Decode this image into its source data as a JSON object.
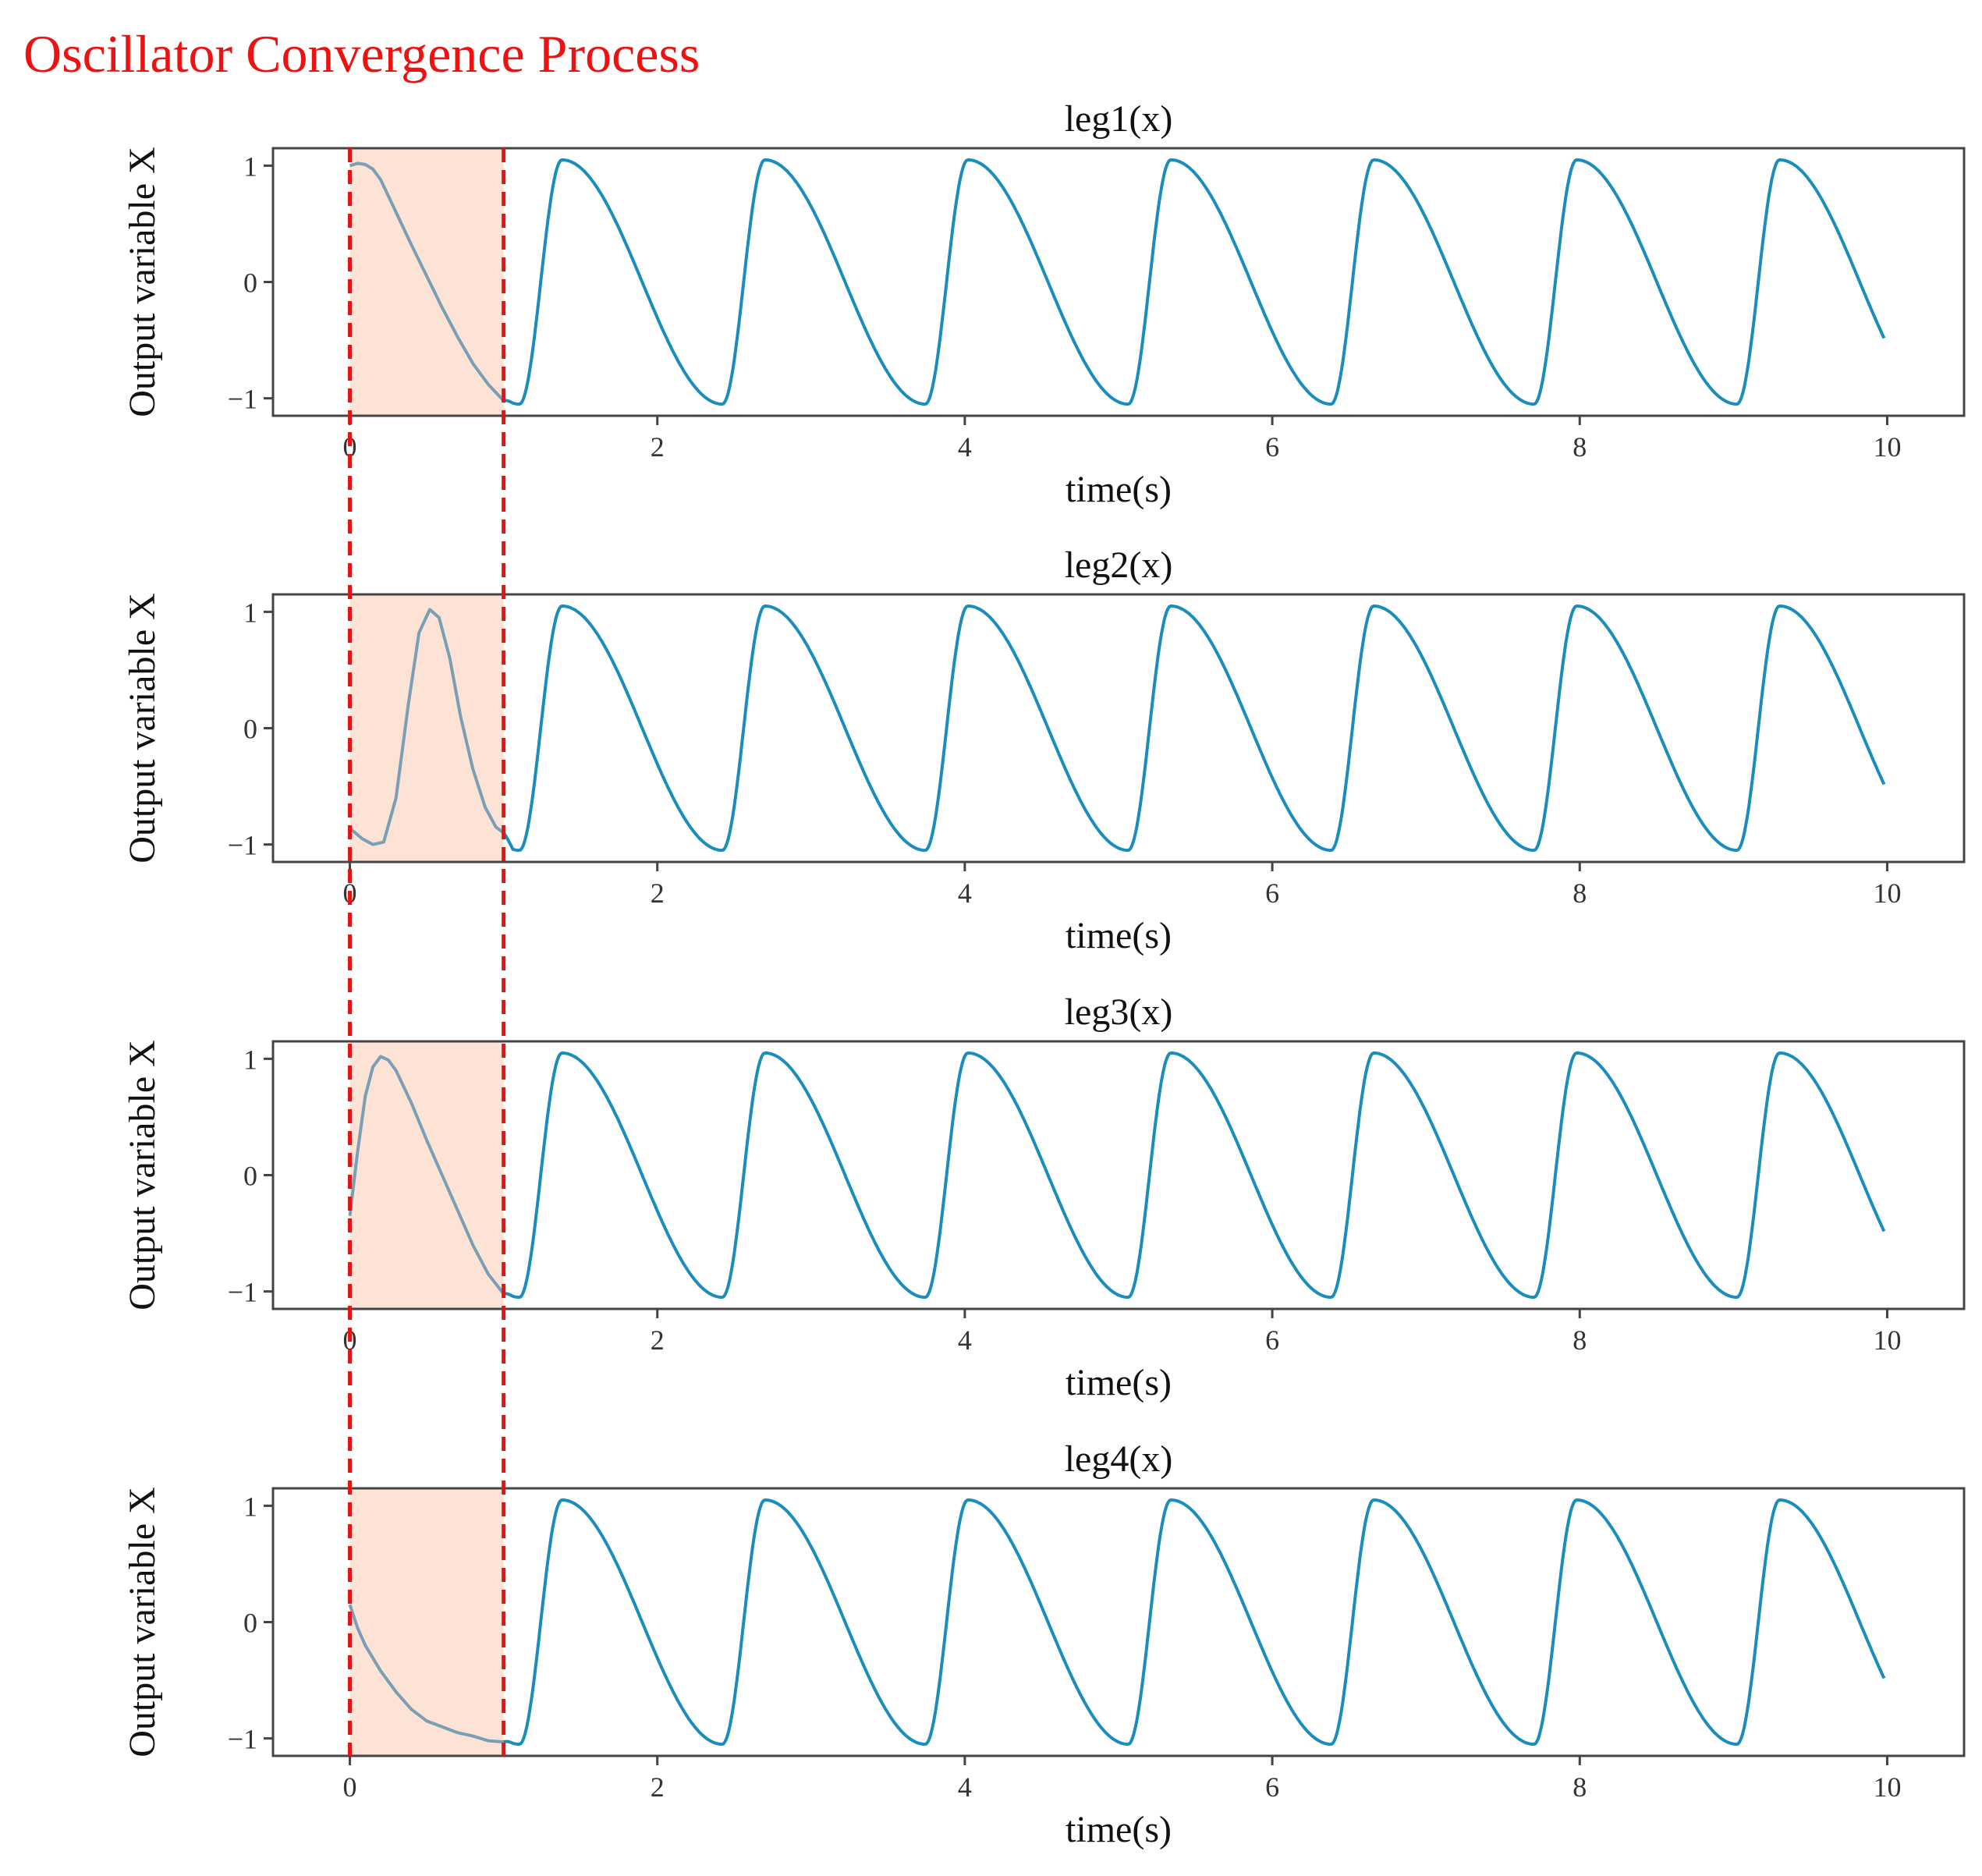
{
  "figure": {
    "title": "Oscillator Convergence Process",
    "title_color": "#ee1111",
    "line_color": "#1a8dbd",
    "transient_line_color": "#7a9fb4",
    "highlight_fill": "#fde3d6",
    "marker_line_color": "#e01515",
    "frame_color": "#444444"
  },
  "chart_data": [
    {
      "type": "line",
      "title": "leg1(x)",
      "xlabel": "time(s)",
      "ylabel": "Output variable X",
      "xlim": [
        -0.5,
        10.5
      ],
      "ylim": [
        -1.15,
        1.15
      ],
      "xticks": [
        0,
        2,
        4,
        6,
        8,
        10
      ],
      "xtick_labels": [
        "0",
        "2",
        "4",
        "6",
        "8",
        "10"
      ],
      "yticks": [
        -1,
        0,
        1
      ],
      "ytick_labels": [
        "−1",
        "0",
        "1"
      ],
      "highlight_region": [
        0,
        1.0
      ],
      "period": 1.32,
      "phase_peak": 1.38,
      "peak": 1.05,
      "trough": -1.05,
      "x_end": 9.98,
      "end_value": -0.5,
      "transient": [
        [
          0,
          1.0
        ],
        [
          0.05,
          1.02
        ],
        [
          0.1,
          1.01
        ],
        [
          0.15,
          0.97
        ],
        [
          0.2,
          0.88
        ],
        [
          0.3,
          0.6
        ],
        [
          0.4,
          0.32
        ],
        [
          0.5,
          0.05
        ],
        [
          0.6,
          -0.22
        ],
        [
          0.7,
          -0.47
        ],
        [
          0.8,
          -0.7
        ],
        [
          0.9,
          -0.88
        ],
        [
          1.0,
          -1.02
        ]
      ]
    },
    {
      "type": "line",
      "title": "leg2(x)",
      "xlabel": "time(s)",
      "ylabel": "Output variable X",
      "xlim": [
        -0.5,
        10.5
      ],
      "ylim": [
        -1.15,
        1.15
      ],
      "xticks": [
        0,
        2,
        4,
        6,
        8,
        10
      ],
      "xtick_labels": [
        "0",
        "2",
        "4",
        "6",
        "8",
        "10"
      ],
      "yticks": [
        -1,
        0,
        1
      ],
      "ytick_labels": [
        "−1",
        "0",
        "1"
      ],
      "highlight_region": [
        0,
        1.0
      ],
      "period": 1.32,
      "phase_peak": 1.38,
      "peak": 1.05,
      "trough": -1.05,
      "x_end": 9.98,
      "end_value": -0.5,
      "transient": [
        [
          0,
          -0.86
        ],
        [
          0.08,
          -0.95
        ],
        [
          0.15,
          -1.0
        ],
        [
          0.22,
          -0.98
        ],
        [
          0.3,
          -0.6
        ],
        [
          0.38,
          0.2
        ],
        [
          0.45,
          0.82
        ],
        [
          0.52,
          1.02
        ],
        [
          0.58,
          0.95
        ],
        [
          0.65,
          0.6
        ],
        [
          0.72,
          0.1
        ],
        [
          0.8,
          -0.35
        ],
        [
          0.88,
          -0.68
        ],
        [
          0.95,
          -0.85
        ],
        [
          1.0,
          -0.9
        ]
      ]
    },
    {
      "type": "line",
      "title": "leg3(x)",
      "xlabel": "time(s)",
      "ylabel": "Output variable X",
      "xlim": [
        -0.5,
        10.5
      ],
      "ylim": [
        -1.15,
        1.15
      ],
      "xticks": [
        0,
        2,
        4,
        6,
        8,
        10
      ],
      "xtick_labels": [
        "0",
        "2",
        "4",
        "6",
        "8",
        "10"
      ],
      "yticks": [
        -1,
        0,
        1
      ],
      "ytick_labels": [
        "−1",
        "0",
        "1"
      ],
      "highlight_region": [
        0,
        1.0
      ],
      "period": 1.32,
      "phase_peak": 1.38,
      "peak": 1.05,
      "trough": -1.05,
      "x_end": 9.98,
      "end_value": -0.5,
      "transient": [
        [
          0,
          -0.35
        ],
        [
          0.05,
          0.2
        ],
        [
          0.1,
          0.68
        ],
        [
          0.15,
          0.93
        ],
        [
          0.2,
          1.02
        ],
        [
          0.25,
          0.99
        ],
        [
          0.3,
          0.9
        ],
        [
          0.4,
          0.62
        ],
        [
          0.5,
          0.3
        ],
        [
          0.6,
          0.0
        ],
        [
          0.7,
          -0.3
        ],
        [
          0.8,
          -0.6
        ],
        [
          0.9,
          -0.85
        ],
        [
          1.0,
          -1.02
        ]
      ]
    },
    {
      "type": "line",
      "title": "leg4(x)",
      "xlabel": "time(s)",
      "ylabel": "Output variable X",
      "xlim": [
        -0.5,
        10.5
      ],
      "ylim": [
        -1.15,
        1.15
      ],
      "xticks": [
        0,
        2,
        4,
        6,
        8,
        10
      ],
      "xtick_labels": [
        "0",
        "2",
        "4",
        "6",
        "8",
        "10"
      ],
      "yticks": [
        -1,
        0,
        1
      ],
      "ytick_labels": [
        "−1",
        "0",
        "1"
      ],
      "highlight_region": [
        0,
        1.0
      ],
      "period": 1.32,
      "phase_peak": 1.38,
      "peak": 1.05,
      "trough": -1.05,
      "x_end": 9.98,
      "end_value": -0.5,
      "transient": [
        [
          0,
          0.15
        ],
        [
          0.05,
          -0.05
        ],
        [
          0.1,
          -0.2
        ],
        [
          0.2,
          -0.42
        ],
        [
          0.3,
          -0.6
        ],
        [
          0.4,
          -0.75
        ],
        [
          0.5,
          -0.85
        ],
        [
          0.6,
          -0.9
        ],
        [
          0.7,
          -0.95
        ],
        [
          0.8,
          -0.98
        ],
        [
          0.9,
          -1.02
        ],
        [
          1.0,
          -1.03
        ]
      ]
    }
  ]
}
